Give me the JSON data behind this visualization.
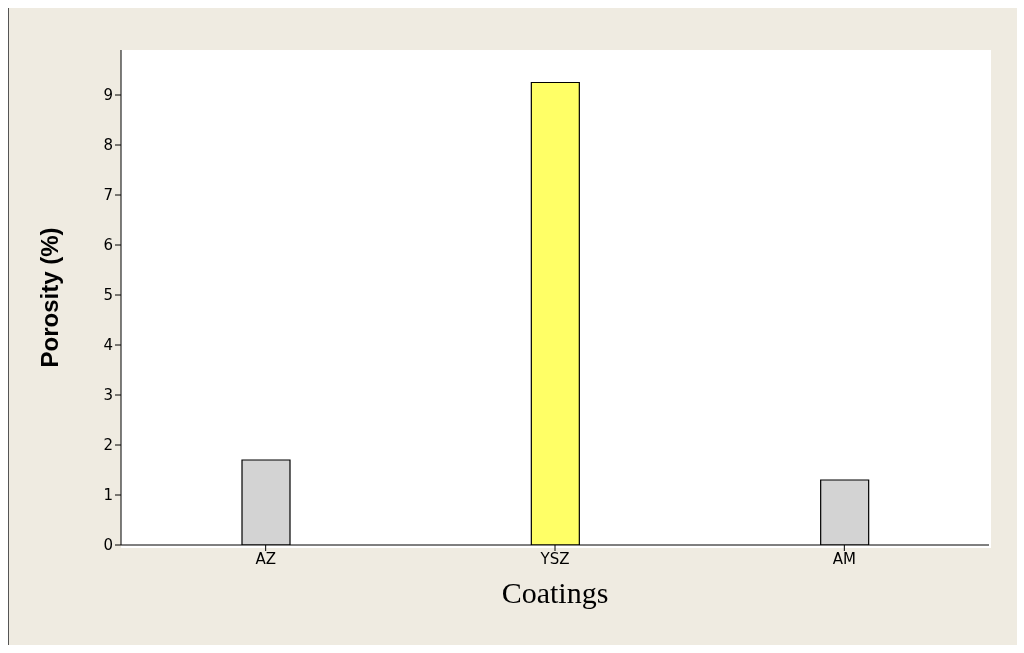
{
  "chart_data": {
    "type": "bar",
    "xlabel": "Coatings",
    "ylabel": "Porosity (%)",
    "categories": [
      "AZ",
      "YSZ",
      "AM"
    ],
    "values": [
      1.7,
      9.25,
      1.3
    ],
    "colors": [
      "#d3d3d3",
      "#ffff66",
      "#d3d3d3"
    ],
    "ylim": [
      0,
      9.9
    ],
    "yticks": [
      0,
      1,
      2,
      3,
      4,
      5,
      6,
      7,
      8,
      9
    ],
    "grid": false,
    "legend": false
  }
}
